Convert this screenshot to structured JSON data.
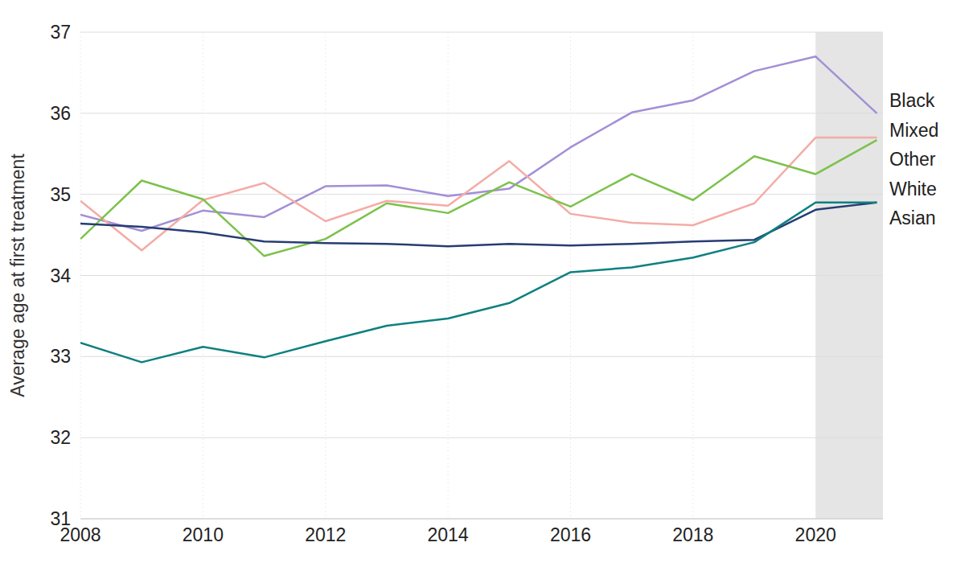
{
  "chart_data": {
    "type": "line",
    "y_label": "Average age at first treatment",
    "x": [
      2008,
      2009,
      2010,
      2011,
      2012,
      2013,
      2014,
      2015,
      2016,
      2017,
      2018,
      2019,
      2020,
      2021
    ],
    "series": [
      {
        "name": "Black",
        "color": "#a38fd6",
        "values": [
          34.75,
          34.55,
          34.8,
          34.72,
          35.1,
          35.11,
          34.98,
          35.07,
          35.58,
          36.01,
          36.16,
          36.52,
          36.7,
          36.0
        ]
      },
      {
        "name": "Mixed",
        "color": "#f4aba5",
        "values": [
          34.92,
          34.31,
          34.93,
          35.14,
          34.67,
          34.92,
          34.86,
          35.41,
          34.76,
          34.65,
          34.62,
          34.89,
          35.7,
          35.7
        ]
      },
      {
        "name": "Other",
        "color": "#7cc24b",
        "values": [
          34.45,
          35.17,
          34.94,
          34.24,
          34.45,
          34.89,
          34.77,
          35.15,
          34.85,
          35.25,
          34.93,
          35.47,
          35.25,
          35.67
        ]
      },
      {
        "name": "White",
        "color": "#263d73",
        "values": [
          34.64,
          34.6,
          34.53,
          34.42,
          34.4,
          34.39,
          34.36,
          34.39,
          34.37,
          34.39,
          34.42,
          34.44,
          34.81,
          34.9
        ]
      },
      {
        "name": "Asian",
        "color": "#0e8080",
        "values": [
          33.17,
          32.93,
          33.12,
          32.99,
          33.19,
          33.38,
          33.47,
          33.66,
          34.04,
          34.1,
          34.22,
          34.41,
          34.9,
          34.9
        ]
      }
    ],
    "shaded_x": [
      2020,
      2021.1
    ],
    "xlim": [
      2008,
      2021.1
    ],
    "xticks": [
      2008,
      2010,
      2012,
      2014,
      2016,
      2018,
      2020
    ],
    "ylim": [
      31,
      37
    ],
    "yticks": [
      31,
      32,
      33,
      34,
      35,
      36,
      37
    ],
    "grid": true,
    "legend": "right"
  }
}
